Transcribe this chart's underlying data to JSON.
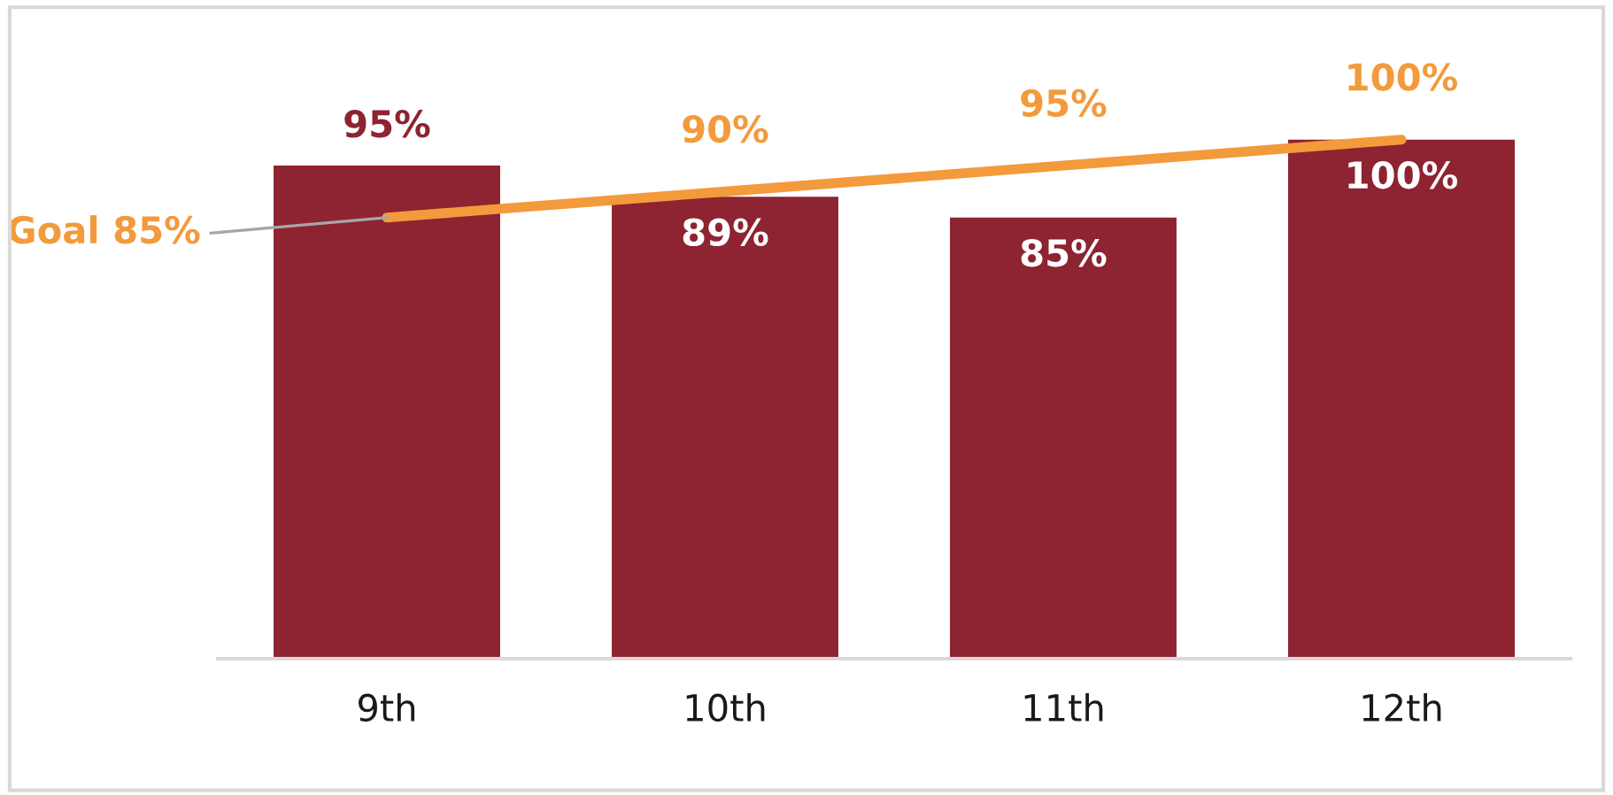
{
  "chart_data": {
    "type": "bar",
    "categories": [
      "9th",
      "10th",
      "11th",
      "12th"
    ],
    "values": [
      95,
      89,
      85,
      100
    ],
    "color": "#8e2331",
    "value_labels": [
      "95%",
      "89%",
      "85%",
      "100%"
    ],
    "series": [
      {
        "type": "line",
        "color": "#f39a3c",
        "values": [
          85,
          90,
          95,
          100
        ],
        "value_labels": [
          "Goal 85%",
          "90%",
          "95%",
          "100%"
        ]
      }
    ],
    "tick_labels": "x"
  }
}
